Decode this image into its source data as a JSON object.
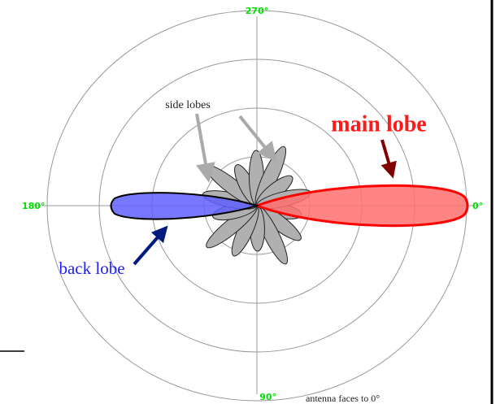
{
  "angles": {
    "top": "270°",
    "left": "180°",
    "right": "0°",
    "bottom": "90°"
  },
  "labels": {
    "side_lobes": "side lobes",
    "main_lobe": "main lobe",
    "back_lobe": "back lobe",
    "caption": "antenna faces to 0°"
  }
}
